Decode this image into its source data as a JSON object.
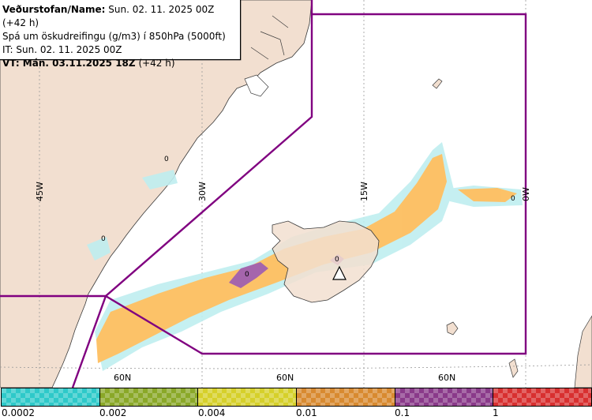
{
  "header": {
    "line1_bold": "Veðurstofan/Name:",
    "line1_rest": "Sun. 02. 11. 2025 00Z (+42 h)",
    "line2": "Spá um öskudreifingu (g/m3) í 850hPa (5000ft)",
    "line3": "IT: Sun. 02. 11. 2025 00Z",
    "line4_bold": "VT: Mán. 03.11.2025 18Z",
    "line4_rest": "(+42 h)"
  },
  "map": {
    "longitude_labels": [
      "45W",
      "30W",
      "15W",
      "0W"
    ],
    "latitude_labels": [
      "60N",
      "60N",
      "60N"
    ],
    "contour_labels": [
      "0",
      "0",
      "0",
      "0",
      "0"
    ],
    "colors": {
      "land": "#f2dfd0",
      "sea": "#ffffff",
      "grid": "#9a9a9a",
      "boundary": "#800080",
      "ash_low": "#ffbf60",
      "ash_trace": "#bfeef0",
      "ash_high": "#a060b0"
    },
    "volcano_marker": "triangle-icon"
  },
  "legend": {
    "swatches": [
      {
        "color": "#2ec9c9"
      },
      {
        "color": "#8aa828"
      },
      {
        "color": "#d6d02a"
      },
      {
        "color": "#d88a30"
      },
      {
        "color": "#8a3a8a"
      },
      {
        "color": "#d83030"
      }
    ],
    "ticks": [
      "0.0002",
      "0.002",
      "0.004",
      "0.01",
      "0.1",
      "1"
    ]
  }
}
